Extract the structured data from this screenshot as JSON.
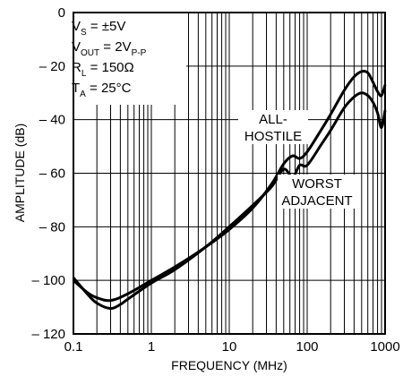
{
  "chart_data": {
    "type": "line",
    "xlabel": "FREQUENCY (MHz)",
    "ylabel": "AMPLITUDE (dB)",
    "x_scale": "log",
    "xlim": [
      0.1,
      1000
    ],
    "ylim": [
      -120,
      0
    ],
    "x_ticks": [
      0.1,
      1,
      10,
      100,
      1000
    ],
    "x_tick_labels": [
      "0.1",
      "1",
      "10",
      "100",
      "1000"
    ],
    "y_ticks": [
      0,
      -20,
      -40,
      -60,
      -80,
      -100,
      -120
    ],
    "y_tick_labels": [
      "0",
      "– 20",
      "– 40",
      "– 60",
      "– 80",
      "– 100",
      "– 120"
    ],
    "grid": true,
    "conditions": [
      {
        "main": "V",
        "sub": "S",
        "rest": " = ±5V"
      },
      {
        "main": "V",
        "sub": "OUT",
        "rest": " = 2V",
        "sub2": "P-P"
      },
      {
        "main": "R",
        "sub": "L",
        "rest": " = 150Ω"
      },
      {
        "main": "T",
        "sub": "A",
        "rest": " = 25°C"
      }
    ],
    "series": [
      {
        "name": "ALL-HOSTILE",
        "label_lines": [
          "ALL-",
          "HOSTILE"
        ],
        "x": [
          0.1,
          0.15,
          0.2,
          0.3,
          0.5,
          1,
          2,
          5,
          10,
          20,
          35,
          50,
          65,
          80,
          100,
          150,
          200,
          300,
          400,
          500,
          600,
          700,
          800,
          900,
          1000
        ],
        "y": [
          -100,
          -104.5,
          -106.5,
          -107.5,
          -105,
          -100,
          -95,
          -87.5,
          -81,
          -73,
          -64,
          -56.5,
          -53.5,
          -54.5,
          -52,
          -44,
          -38,
          -29,
          -24,
          -22,
          -22.5,
          -26,
          -29.5,
          -31,
          -27
        ]
      },
      {
        "name": "WORST ADJACENT",
        "label_lines": [
          "WORST",
          "ADJACENT"
        ],
        "x": [
          0.1,
          0.15,
          0.2,
          0.3,
          0.4,
          0.5,
          1,
          2,
          5,
          10,
          20,
          35,
          50,
          65,
          80,
          100,
          150,
          200,
          300,
          400,
          500,
          600,
          700,
          800,
          900,
          1000
        ],
        "y": [
          -99,
          -105,
          -108.5,
          -110.5,
          -109,
          -107,
          -101,
          -96,
          -87.5,
          -80,
          -72,
          -65,
          -58.5,
          -61.5,
          -57,
          -57,
          -49.5,
          -44,
          -35.5,
          -31.5,
          -30,
          -31,
          -33.5,
          -37.5,
          -43,
          -36.5
        ]
      }
    ]
  }
}
